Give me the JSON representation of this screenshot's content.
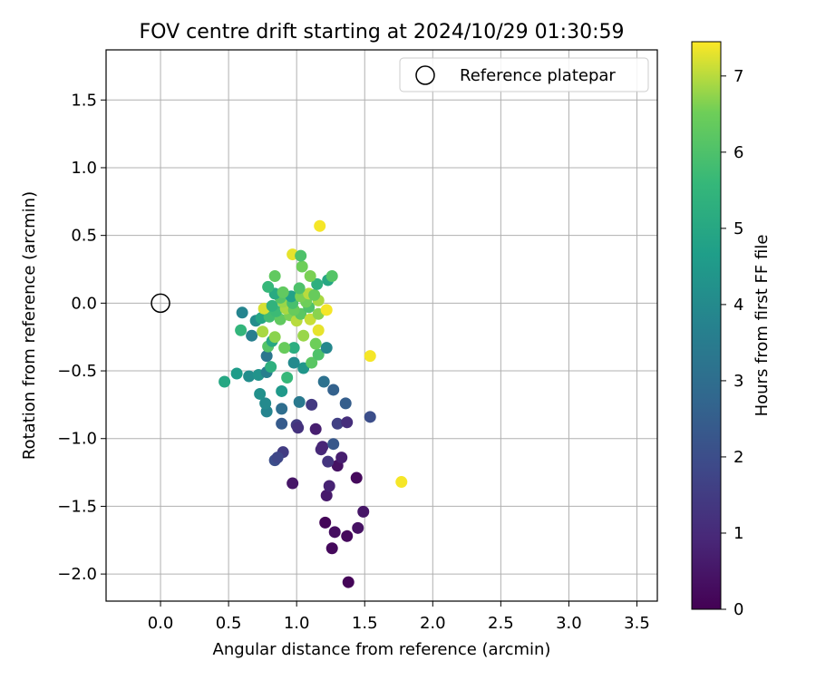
{
  "chart_data": {
    "type": "scatter",
    "title": "FOV centre drift starting at 2024/10/29 01:30:59",
    "xlabel": "Angular distance from reference (arcmin)",
    "ylabel": "Rotation from reference (arcmin)",
    "xlim": [
      -0.4,
      3.65
    ],
    "ylim": [
      -2.2,
      1.87
    ],
    "xticks": [
      "0.0",
      "0.5",
      "1.0",
      "1.5",
      "2.0",
      "2.5",
      "3.0",
      "3.5"
    ],
    "yticks": [
      "−2.0",
      "−1.5",
      "−1.0",
      "−0.5",
      "0.0",
      "0.5",
      "1.0",
      "1.5"
    ],
    "grid": true,
    "legend": {
      "placement": "top-right",
      "entries": [
        "Reference platepar"
      ]
    },
    "reference_point": {
      "x": 0.0,
      "y": 0.0
    },
    "colorbar": {
      "label": "Hours from first FF file",
      "min": 0,
      "max": 7.45,
      "ticks": [
        "0",
        "1",
        "2",
        "3",
        "4",
        "5",
        "6",
        "7"
      ],
      "colormap": "viridis"
    },
    "points": [
      {
        "x": 1.38,
        "y": -2.06,
        "t": 0.1
      },
      {
        "x": 1.26,
        "y": -1.81,
        "t": 0.2
      },
      {
        "x": 1.37,
        "y": -1.72,
        "t": 0.2
      },
      {
        "x": 1.21,
        "y": -1.62,
        "t": 0.1
      },
      {
        "x": 1.28,
        "y": -1.69,
        "t": 0.3
      },
      {
        "x": 1.45,
        "y": -1.66,
        "t": 0.4
      },
      {
        "x": 1.49,
        "y": -1.54,
        "t": 0.5
      },
      {
        "x": 1.22,
        "y": -1.42,
        "t": 0.6
      },
      {
        "x": 1.24,
        "y": -1.35,
        "t": 0.8
      },
      {
        "x": 0.97,
        "y": -1.33,
        "t": 0.5
      },
      {
        "x": 1.44,
        "y": -1.29,
        "t": 0.2
      },
      {
        "x": 1.3,
        "y": -1.2,
        "t": 0.4
      },
      {
        "x": 1.33,
        "y": -1.14,
        "t": 0.7
      },
      {
        "x": 1.23,
        "y": -1.17,
        "t": 1.3
      },
      {
        "x": 1.18,
        "y": -1.08,
        "t": 1.0
      },
      {
        "x": 1.19,
        "y": -1.06,
        "t": 0.9
      },
      {
        "x": 0.9,
        "y": -1.1,
        "t": 1.5
      },
      {
        "x": 0.84,
        "y": -1.16,
        "t": 2.0
      },
      {
        "x": 0.86,
        "y": -1.14,
        "t": 1.8
      },
      {
        "x": 1.27,
        "y": -1.04,
        "t": 2.3
      },
      {
        "x": 1.14,
        "y": -0.93,
        "t": 0.7
      },
      {
        "x": 1.0,
        "y": -0.9,
        "t": 1.5
      },
      {
        "x": 1.01,
        "y": -0.92,
        "t": 1.2
      },
      {
        "x": 0.89,
        "y": -0.89,
        "t": 2.4
      },
      {
        "x": 1.3,
        "y": -0.89,
        "t": 1.6
      },
      {
        "x": 1.37,
        "y": -0.88,
        "t": 1.1
      },
      {
        "x": 1.54,
        "y": -0.84,
        "t": 2.0
      },
      {
        "x": 0.89,
        "y": -0.78,
        "t": 3.0
      },
      {
        "x": 0.78,
        "y": -0.8,
        "t": 3.8
      },
      {
        "x": 1.11,
        "y": -0.75,
        "t": 1.4
      },
      {
        "x": 1.36,
        "y": -0.74,
        "t": 2.5
      },
      {
        "x": 1.02,
        "y": -0.73,
        "t": 3.4
      },
      {
        "x": 0.77,
        "y": -0.74,
        "t": 4.0
      },
      {
        "x": 0.73,
        "y": -0.67,
        "t": 4.2
      },
      {
        "x": 0.89,
        "y": -0.65,
        "t": 4.5
      },
      {
        "x": 1.27,
        "y": -0.64,
        "t": 2.6
      },
      {
        "x": 1.2,
        "y": -0.58,
        "t": 3.1
      },
      {
        "x": 0.47,
        "y": -0.58,
        "t": 5.0
      },
      {
        "x": 0.56,
        "y": -0.52,
        "t": 4.6
      },
      {
        "x": 0.65,
        "y": -0.54,
        "t": 4.1
      },
      {
        "x": 0.72,
        "y": -0.53,
        "t": 4.3
      },
      {
        "x": 0.78,
        "y": -0.51,
        "t": 3.6
      },
      {
        "x": 0.93,
        "y": -0.55,
        "t": 5.6
      },
      {
        "x": 1.05,
        "y": -0.48,
        "t": 4.4
      },
      {
        "x": 0.81,
        "y": -0.47,
        "t": 5.3
      },
      {
        "x": 0.98,
        "y": -0.44,
        "t": 4.0
      },
      {
        "x": 1.11,
        "y": -0.44,
        "t": 6.2
      },
      {
        "x": 1.16,
        "y": -0.38,
        "t": 6.0
      },
      {
        "x": 0.78,
        "y": -0.39,
        "t": 3.3
      },
      {
        "x": 1.54,
        "y": -0.39,
        "t": 7.4
      },
      {
        "x": 0.98,
        "y": -0.33,
        "t": 5.2
      },
      {
        "x": 1.22,
        "y": -0.33,
        "t": 3.9
      },
      {
        "x": 0.91,
        "y": -0.33,
        "t": 6.4
      },
      {
        "x": 0.79,
        "y": -0.32,
        "t": 6.1
      },
      {
        "x": 1.14,
        "y": -0.3,
        "t": 6.5
      },
      {
        "x": 0.82,
        "y": -0.28,
        "t": 5.0
      },
      {
        "x": 0.84,
        "y": -0.25,
        "t": 6.7
      },
      {
        "x": 0.67,
        "y": -0.24,
        "t": 3.6
      },
      {
        "x": 1.05,
        "y": -0.24,
        "t": 6.8
      },
      {
        "x": 0.59,
        "y": -0.2,
        "t": 5.5
      },
      {
        "x": 1.16,
        "y": -0.2,
        "t": 7.3
      },
      {
        "x": 0.75,
        "y": -0.21,
        "t": 6.9
      },
      {
        "x": 0.7,
        "y": -0.13,
        "t": 4.1
      },
      {
        "x": 0.74,
        "y": -0.11,
        "t": 4.9
      },
      {
        "x": 0.8,
        "y": -0.1,
        "t": 5.8
      },
      {
        "x": 0.88,
        "y": -0.12,
        "t": 6.3
      },
      {
        "x": 0.95,
        "y": -0.09,
        "t": 6.6
      },
      {
        "x": 1.0,
        "y": -0.13,
        "t": 7.0
      },
      {
        "x": 1.03,
        "y": -0.08,
        "t": 6.2
      },
      {
        "x": 1.1,
        "y": -0.12,
        "t": 7.1
      },
      {
        "x": 1.16,
        "y": -0.08,
        "t": 6.7
      },
      {
        "x": 0.6,
        "y": -0.07,
        "t": 3.8
      },
      {
        "x": 0.85,
        "y": -0.06,
        "t": 5.7
      },
      {
        "x": 0.92,
        "y": -0.04,
        "t": 6.9
      },
      {
        "x": 0.98,
        "y": -0.05,
        "t": 6.4
      },
      {
        "x": 1.09,
        "y": -0.03,
        "t": 6.0
      },
      {
        "x": 0.76,
        "y": -0.04,
        "t": 7.2
      },
      {
        "x": 1.22,
        "y": -0.05,
        "t": 7.4
      },
      {
        "x": 0.82,
        "y": -0.02,
        "t": 5.4
      },
      {
        "x": 0.9,
        "y": 0.01,
        "t": 6.8
      },
      {
        "x": 0.97,
        "y": 0.0,
        "t": 5.9
      },
      {
        "x": 1.07,
        "y": 0.01,
        "t": 6.5
      },
      {
        "x": 1.16,
        "y": 0.02,
        "t": 6.9
      },
      {
        "x": 0.88,
        "y": 0.04,
        "t": 6.1
      },
      {
        "x": 0.96,
        "y": 0.05,
        "t": 4.8
      },
      {
        "x": 0.84,
        "y": 0.07,
        "t": 5.1
      },
      {
        "x": 0.9,
        "y": 0.08,
        "t": 6.3
      },
      {
        "x": 1.03,
        "y": 0.05,
        "t": 6.6
      },
      {
        "x": 1.09,
        "y": 0.07,
        "t": 7.0
      },
      {
        "x": 1.13,
        "y": 0.06,
        "t": 6.4
      },
      {
        "x": 0.79,
        "y": 0.12,
        "t": 5.6
      },
      {
        "x": 1.02,
        "y": 0.11,
        "t": 6.0
      },
      {
        "x": 1.15,
        "y": 0.14,
        "t": 5.3
      },
      {
        "x": 1.23,
        "y": 0.17,
        "t": 5.0
      },
      {
        "x": 0.84,
        "y": 0.2,
        "t": 6.3
      },
      {
        "x": 1.1,
        "y": 0.2,
        "t": 6.6
      },
      {
        "x": 1.26,
        "y": 0.2,
        "t": 6.1
      },
      {
        "x": 1.04,
        "y": 0.27,
        "t": 6.5
      },
      {
        "x": 0.97,
        "y": 0.36,
        "t": 7.3
      },
      {
        "x": 1.03,
        "y": 0.35,
        "t": 6.0
      },
      {
        "x": 1.17,
        "y": 0.57,
        "t": 7.4
      },
      {
        "x": 1.77,
        "y": -1.32,
        "t": 7.4
      }
    ]
  }
}
